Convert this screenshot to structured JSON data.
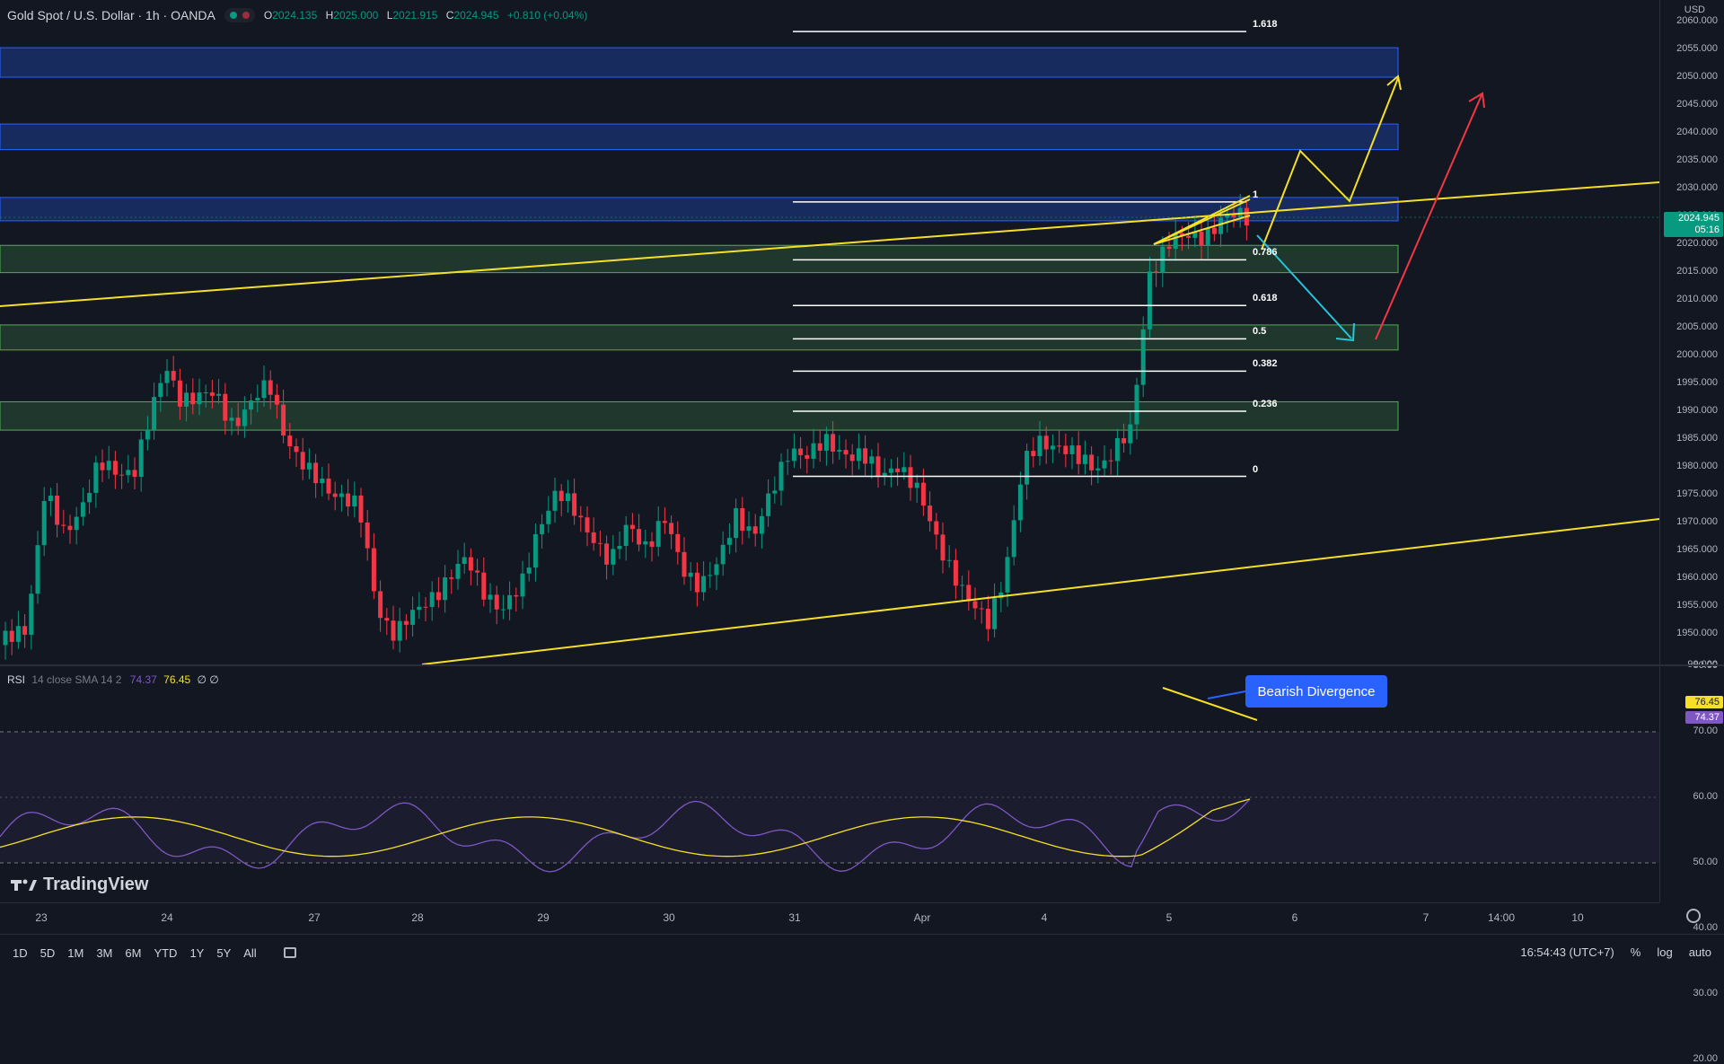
{
  "header": {
    "symbol": "Gold Spot / U.S. Dollar · 1h · OANDA",
    "o_label": "O",
    "o": "2024.135",
    "h_label": "H",
    "h": "2025.000",
    "l_label": "L",
    "l": "2021.915",
    "c_label": "C",
    "c": "2024.945",
    "change": "+0.810 (+0.04%)"
  },
  "currency": "USD",
  "price_axis": [
    "2060.000",
    "2055.000",
    "2050.000",
    "2045.000",
    "2040.000",
    "2035.000",
    "2030.000",
    "2025.000",
    "2020.000",
    "2015.000",
    "2010.000",
    "2005.000",
    "2000.000",
    "1995.000",
    "1990.000",
    "1985.000",
    "1980.000",
    "1975.000",
    "1970.000",
    "1965.000",
    "1960.000",
    "1955.000",
    "1950.000",
    "90.000"
  ],
  "last_price": {
    "value": "2024.945",
    "countdown": "05:16"
  },
  "fib_levels": [
    {
      "label": "1.618",
      "price": 2058.2
    },
    {
      "label": "1",
      "price": 2027.6
    },
    {
      "label": "0.786",
      "price": 2017.2
    },
    {
      "label": "0.618",
      "price": 2009.0
    },
    {
      "label": "0.5",
      "price": 2003.0
    },
    {
      "label": "0.382",
      "price": 1997.2
    },
    {
      "label": "0.236",
      "price": 1990.0
    },
    {
      "label": "0",
      "price": 1978.3
    }
  ],
  "zones": [
    {
      "type": "resistance",
      "top": 2055.3,
      "bottom": 2050.0
    },
    {
      "type": "resistance",
      "top": 2041.6,
      "bottom": 2037.0
    },
    {
      "type": "resistance",
      "top": 2028.4,
      "bottom": 2024.2
    },
    {
      "type": "support",
      "top": 2019.8,
      "bottom": 2014.9
    },
    {
      "type": "support",
      "top": 2005.5,
      "bottom": 2001.0
    },
    {
      "type": "support",
      "top": 1991.7,
      "bottom": 1986.6
    }
  ],
  "rsi": {
    "label": "RSI",
    "params": "14 close SMA 14 2",
    "rsi_value": "74.37",
    "sma_value": "76.45",
    "extra": "∅ ∅",
    "axis": [
      "80.00",
      "70.00",
      "60.00",
      "50.00",
      "40.00",
      "30.00",
      "20.00"
    ]
  },
  "annotation": "Bearish Divergence",
  "date_axis": [
    "23",
    "24",
    "27",
    "28",
    "29",
    "30",
    "31",
    "Apr",
    "4",
    "5",
    "6",
    "7",
    "14:00",
    "10"
  ],
  "timeframes": [
    "1D",
    "5D",
    "1M",
    "3M",
    "6M",
    "YTD",
    "1Y",
    "5Y",
    "All"
  ],
  "clock": "16:54:43 (UTC+7)",
  "scale_options": [
    "%",
    "log",
    "auto"
  ],
  "brand": "TradingView",
  "colors": {
    "up": "#089981",
    "down": "#f23645",
    "accent": "#2962ff",
    "fib": "#ffffff",
    "trend": "#f5e027",
    "rsi": "#7e57c2"
  }
}
